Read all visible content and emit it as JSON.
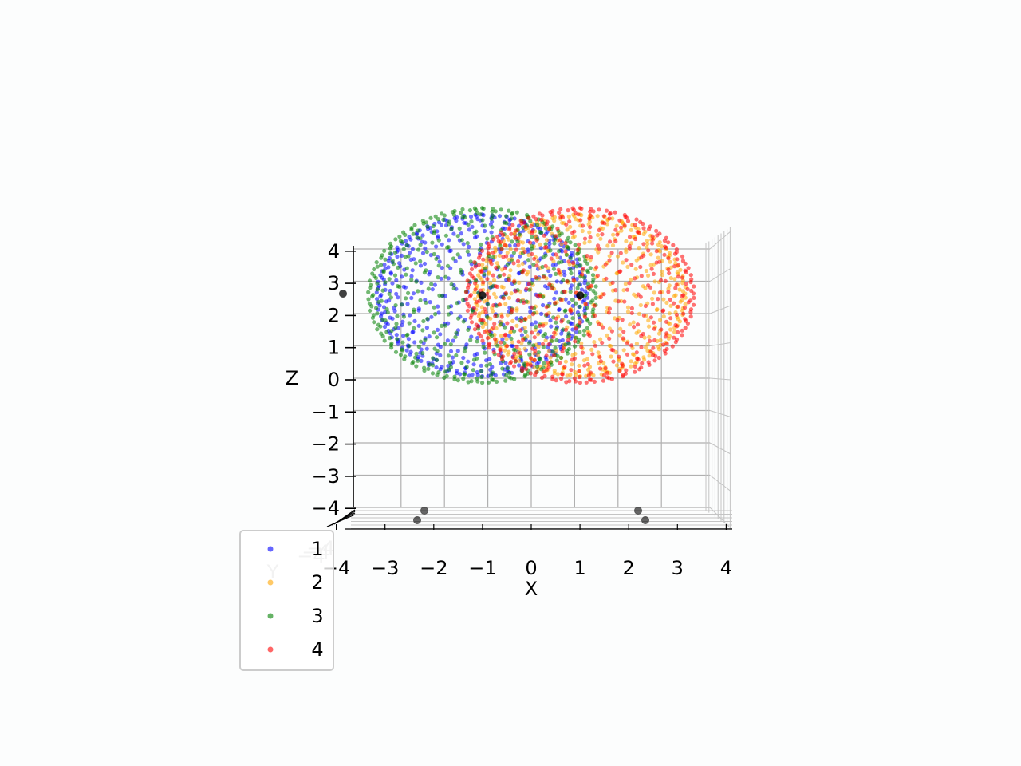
{
  "chart_data": {
    "type": "scatter",
    "projection": "3d",
    "xlabel": "X",
    "ylabel": "Y",
    "zlabel": "Z",
    "xlim": [
      -4,
      4
    ],
    "ylim": [
      -4,
      4
    ],
    "zlim": [
      -4,
      4
    ],
    "x_ticks": [
      "−4",
      "−3",
      "−2",
      "−1",
      "0",
      "1",
      "2",
      "3",
      "4"
    ],
    "z_ticks": [
      "−4",
      "−3",
      "−2",
      "−1",
      "0",
      "1",
      "2",
      "3",
      "4"
    ],
    "y_ticks": [
      "−4",
      "−4",
      "−4"
    ],
    "grid": true,
    "legend_position": "lower-left",
    "series": [
      {
        "name": "1",
        "color": "#0000ff",
        "shape": "sphere",
        "center": [
          -2.15,
          -1,
          2.7
        ],
        "radius": 2.6
      },
      {
        "name": "2",
        "color": "#ffa500",
        "shape": "sphere",
        "center": [
          2.15,
          -1,
          2.7
        ],
        "radius": 2.6
      },
      {
        "name": "3",
        "color": "#008000",
        "shape": "sphere",
        "center": [
          -2.15,
          1,
          2.7
        ],
        "radius": 2.6
      },
      {
        "name": "4",
        "color": "#ff0000",
        "shape": "sphere",
        "center": [
          2.15,
          1,
          2.7
        ],
        "radius": 2.6
      }
    ],
    "center_markers": [
      {
        "color": "#000000",
        "position": [
          -2.15,
          0,
          2.7
        ]
      },
      {
        "color": "#000000",
        "position": [
          2.15,
          0,
          2.7
        ]
      }
    ]
  }
}
